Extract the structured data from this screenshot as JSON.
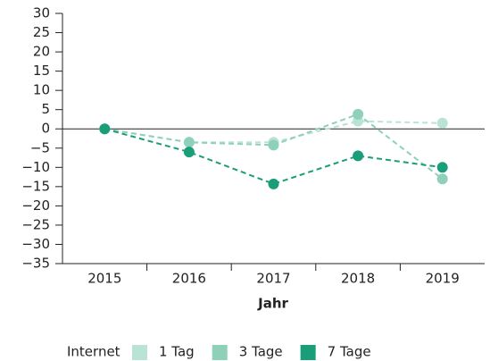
{
  "chart_data": {
    "type": "line",
    "x_label": "Jahr",
    "categories": [
      "2015",
      "2016",
      "2017",
      "2018",
      "2019"
    ],
    "legend_title": "Internet",
    "series": [
      {
        "name": "1 Tag",
        "color": "#b9e3d5",
        "values": [
          0,
          -3.5,
          -3.5,
          2,
          1.5
        ]
      },
      {
        "name": "3 Tage",
        "color": "#8fd0b9",
        "values": [
          0,
          -3.5,
          -4.2,
          3.8,
          -13
        ]
      },
      {
        "name": "7 Tage",
        "color": "#1a9e7a",
        "values": [
          0,
          -6,
          -14.3,
          -7,
          -10
        ]
      }
    ],
    "ylim": [
      -35,
      30
    ],
    "yticks": [
      {
        "value": -35,
        "label": "−35"
      },
      {
        "value": -30,
        "label": "−30"
      },
      {
        "value": -25,
        "label": "−25"
      },
      {
        "value": -20,
        "label": "−20"
      },
      {
        "value": -15,
        "label": "−15"
      },
      {
        "value": -10,
        "label": "−10"
      },
      {
        "value": -5,
        "label": "−5"
      },
      0,
      5,
      10,
      15,
      20,
      25,
      30
    ],
    "line_style": "dashed",
    "legend_position": "bottom"
  }
}
